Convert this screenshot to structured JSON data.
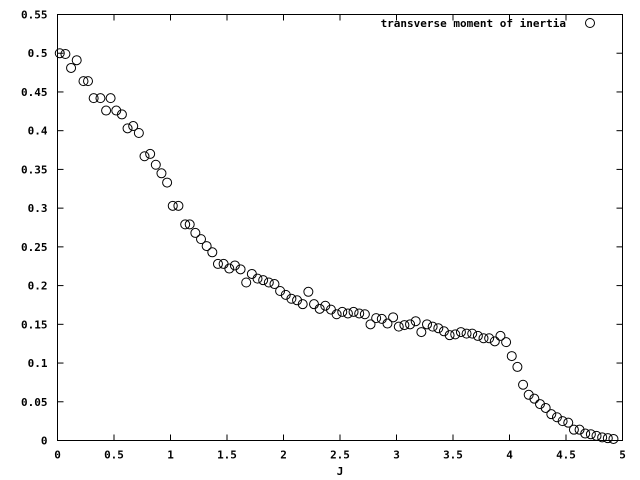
{
  "chart_data": {
    "type": "scatter",
    "title": "",
    "xlabel": "J",
    "ylabel": "",
    "xlim": [
      0,
      5
    ],
    "ylim": [
      0,
      0.55
    ],
    "xticks": [
      "0",
      "0.5",
      "1",
      "1.5",
      "2",
      "2.5",
      "3",
      "3.5",
      "4",
      "4.5",
      "5"
    ],
    "yticks": [
      "0",
      "0.05",
      "0.1",
      "0.15",
      "0.2",
      "0.25",
      "0.3",
      "0.35",
      "0.4",
      "0.45",
      "0.5",
      "0.55"
    ],
    "grid": false,
    "legend_position": "top-right",
    "marker": "open-circle",
    "colors": {
      "marker": "#000000",
      "axis": "#000000",
      "background": "#ffffff"
    },
    "series": [
      {
        "name": "transverse moment of inertia",
        "points": [
          [
            0.02,
            0.5
          ],
          [
            0.07,
            0.499
          ],
          [
            0.12,
            0.481
          ],
          [
            0.17,
            0.491
          ],
          [
            0.23,
            0.464
          ],
          [
            0.27,
            0.464
          ],
          [
            0.32,
            0.442
          ],
          [
            0.38,
            0.442
          ],
          [
            0.43,
            0.426
          ],
          [
            0.47,
            0.442
          ],
          [
            0.52,
            0.426
          ],
          [
            0.57,
            0.421
          ],
          [
            0.62,
            0.403
          ],
          [
            0.67,
            0.406
          ],
          [
            0.72,
            0.397
          ],
          [
            0.77,
            0.367
          ],
          [
            0.82,
            0.37
          ],
          [
            0.87,
            0.356
          ],
          [
            0.92,
            0.345
          ],
          [
            0.97,
            0.333
          ],
          [
            1.02,
            0.303
          ],
          [
            1.07,
            0.303
          ],
          [
            1.13,
            0.279
          ],
          [
            1.17,
            0.279
          ],
          [
            1.22,
            0.268
          ],
          [
            1.27,
            0.26
          ],
          [
            1.32,
            0.251
          ],
          [
            1.37,
            0.243
          ],
          [
            1.42,
            0.228
          ],
          [
            1.47,
            0.228
          ],
          [
            1.52,
            0.222
          ],
          [
            1.57,
            0.226
          ],
          [
            1.62,
            0.221
          ],
          [
            1.67,
            0.204
          ],
          [
            1.72,
            0.215
          ],
          [
            1.77,
            0.209
          ],
          [
            1.82,
            0.207
          ],
          [
            1.87,
            0.204
          ],
          [
            1.92,
            0.202
          ],
          [
            1.97,
            0.193
          ],
          [
            2.02,
            0.188
          ],
          [
            2.07,
            0.183
          ],
          [
            2.12,
            0.181
          ],
          [
            2.17,
            0.176
          ],
          [
            2.22,
            0.192
          ],
          [
            2.27,
            0.176
          ],
          [
            2.32,
            0.17
          ],
          [
            2.37,
            0.174
          ],
          [
            2.42,
            0.169
          ],
          [
            2.47,
            0.163
          ],
          [
            2.52,
            0.166
          ],
          [
            2.57,
            0.164
          ],
          [
            2.62,
            0.166
          ],
          [
            2.67,
            0.164
          ],
          [
            2.72,
            0.163
          ],
          [
            2.77,
            0.15
          ],
          [
            2.82,
            0.158
          ],
          [
            2.87,
            0.157
          ],
          [
            2.92,
            0.151
          ],
          [
            2.97,
            0.159
          ],
          [
            3.02,
            0.147
          ],
          [
            3.07,
            0.149
          ],
          [
            3.12,
            0.15
          ],
          [
            3.17,
            0.154
          ],
          [
            3.22,
            0.14
          ],
          [
            3.27,
            0.15
          ],
          [
            3.32,
            0.147
          ],
          [
            3.37,
            0.145
          ],
          [
            3.42,
            0.141
          ],
          [
            3.47,
            0.136
          ],
          [
            3.52,
            0.137
          ],
          [
            3.57,
            0.14
          ],
          [
            3.62,
            0.138
          ],
          [
            3.67,
            0.138
          ],
          [
            3.72,
            0.135
          ],
          [
            3.77,
            0.132
          ],
          [
            3.82,
            0.132
          ],
          [
            3.87,
            0.128
          ],
          [
            3.92,
            0.135
          ],
          [
            3.97,
            0.127
          ],
          [
            4.02,
            0.109
          ],
          [
            4.07,
            0.095
          ],
          [
            4.12,
            0.072
          ],
          [
            4.17,
            0.059
          ],
          [
            4.22,
            0.054
          ],
          [
            4.27,
            0.047
          ],
          [
            4.32,
            0.042
          ],
          [
            4.37,
            0.034
          ],
          [
            4.42,
            0.03
          ],
          [
            4.47,
            0.025
          ],
          [
            4.52,
            0.023
          ],
          [
            4.57,
            0.014
          ],
          [
            4.62,
            0.014
          ],
          [
            4.67,
            0.009
          ],
          [
            4.72,
            0.008
          ],
          [
            4.77,
            0.006
          ],
          [
            4.82,
            0.004
          ],
          [
            4.87,
            0.003
          ],
          [
            4.92,
            0.002
          ]
        ]
      }
    ]
  }
}
